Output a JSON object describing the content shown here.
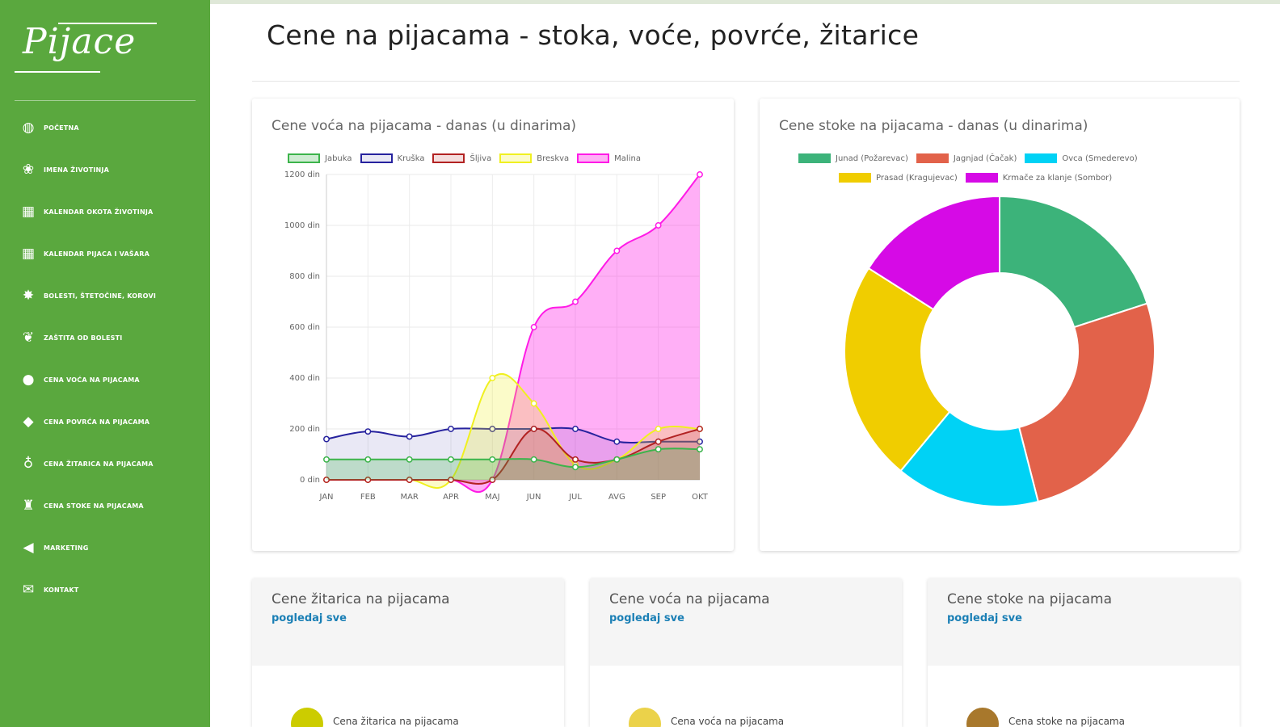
{
  "sidebar": {
    "logo": "Pijace",
    "items": [
      {
        "label": "POČETNA",
        "icon": "globe-icon",
        "glyph": "◍"
      },
      {
        "label": "IMENA ŽIVOTINJA",
        "icon": "paw-icon",
        "glyph": "❀"
      },
      {
        "label": "KALENDAR OKOTA ŽIVOTINJA",
        "icon": "calendar-icon",
        "glyph": "▦"
      },
      {
        "label": "KALENDAR PIJACA I VAŠARA",
        "icon": "calendar-icon",
        "glyph": "▦"
      },
      {
        "label": "BOLESTI, ŠTETOČINE, KOROVI",
        "icon": "bug-icon",
        "glyph": "✸"
      },
      {
        "label": "ZAŠTITA OD BOLESTI",
        "icon": "leaf-icon",
        "glyph": "❦"
      },
      {
        "label": "CENA VOĆA NA PIJACAMA",
        "icon": "apple-icon",
        "glyph": "●"
      },
      {
        "label": "CENA POVRĆA NA PIJACAMA",
        "icon": "carrot-icon",
        "glyph": "◆"
      },
      {
        "label": "CENA ŽITARICA NA PIJACAMA",
        "icon": "bottle-icon",
        "glyph": "♁"
      },
      {
        "label": "CENA STOKE NA PIJACAMA",
        "icon": "animal-icon",
        "glyph": "♜"
      },
      {
        "label": "MARKETING",
        "icon": "megaphone-icon",
        "glyph": "◀"
      },
      {
        "label": "KONTAKT",
        "icon": "chat-icon",
        "glyph": "✉"
      }
    ]
  },
  "page": {
    "title": "Cene na pijacama - stoka, voće, povrće, žitarice"
  },
  "charts": {
    "fruit_title": "Cene voća na pijacama - danas (u dinarima)",
    "livestock_title": "Cene stoke na pijacama - danas (u dinarima)"
  },
  "chart_data": [
    {
      "type": "line",
      "title": "Cene voća na pijacama - danas (u dinarima)",
      "x": [
        "JAN",
        "FEB",
        "MAR",
        "APR",
        "MAJ",
        "JUN",
        "JUL",
        "AVG",
        "SEP",
        "OKT"
      ],
      "ylim": [
        0,
        1200
      ],
      "yticks": [
        0,
        200,
        400,
        600,
        800,
        1000,
        1200
      ],
      "ytick_suffix": " din",
      "grid": true,
      "legend": "top",
      "series": [
        {
          "name": "Jabuka",
          "color": "#3cb44b",
          "fill": "rgba(60,180,75,0.25)",
          "values": [
            80,
            80,
            80,
            80,
            80,
            80,
            50,
            80,
            120,
            120
          ]
        },
        {
          "name": "Kruška",
          "color": "#26229e",
          "fill": "rgba(38,34,158,0.10)",
          "values": [
            160,
            190,
            170,
            200,
            200,
            200,
            200,
            150,
            150,
            150
          ]
        },
        {
          "name": "Šljiva",
          "color": "#b22222",
          "fill": "rgba(178,34,34,0.15)",
          "values": [
            0,
            0,
            0,
            0,
            0,
            200,
            80,
            80,
            150,
            200
          ]
        },
        {
          "name": "Breskva",
          "color": "#f0f020",
          "fill": "rgba(240,240,40,0.25)",
          "values": [
            0,
            0,
            0,
            0,
            400,
            300,
            60,
            80,
            200,
            200
          ]
        },
        {
          "name": "Malina",
          "color": "#ff1ae6",
          "fill": "rgba(255,26,230,0.35)",
          "values": [
            0,
            0,
            0,
            0,
            0,
            600,
            700,
            900,
            1000,
            1200
          ]
        }
      ]
    },
    {
      "type": "pie",
      "donut": true,
      "title": "Cene stoke na pijacama - danas (u dinarima)",
      "legend": "top",
      "categories": [
        "Junad (Požarevac)",
        "Jagnjad (Čačak)",
        "Ovca (Smederevo)",
        "Prasad (Kragujevac)",
        "Krmače za klanje (Sombor)"
      ],
      "values": [
        20,
        26,
        15,
        23,
        16
      ],
      "colors": [
        "#3cb37a",
        "#e2624a",
        "#00d2f5",
        "#f0cd00",
        "#d60ae6"
      ]
    }
  ],
  "bottom_cards": [
    {
      "title": "Cene žitarica na pijacama",
      "link": "pogledaj sve",
      "icon_color": "#cccc00",
      "icon": "grain-icon",
      "text": "Cena žitarica na pijacama"
    },
    {
      "title": "Cene voća na pijacama",
      "link": "pogledaj sve",
      "icon_color": "#ebd24a",
      "icon": "fruit-icon",
      "text": "Cena voća na pijacama"
    },
    {
      "title": "Cene stoke na pijacama",
      "link": "pogledaj sve",
      "icon_color": "#a8782c",
      "icon": "cow-icon",
      "text": "Cena stoke na pijacama"
    }
  ]
}
